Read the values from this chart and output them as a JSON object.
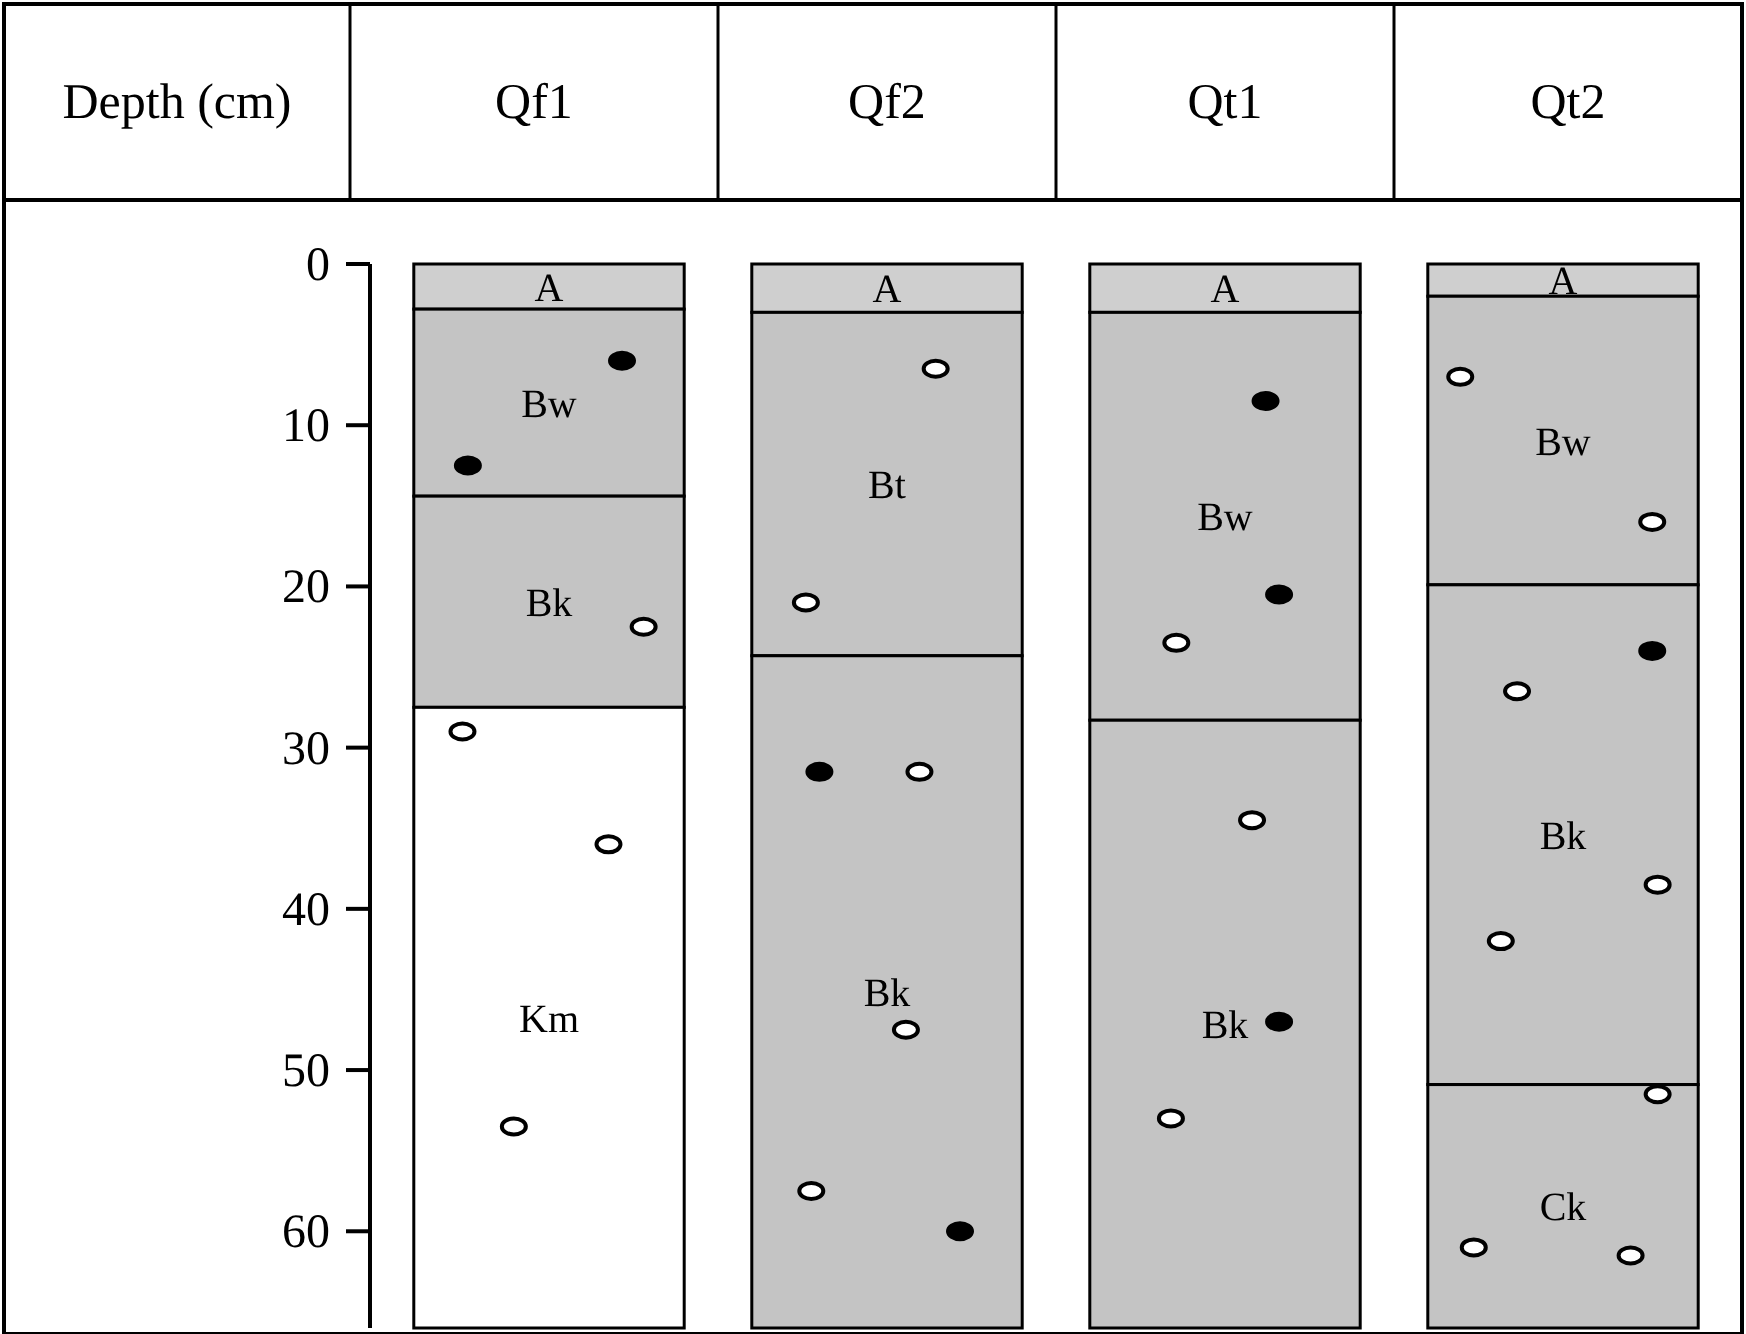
{
  "chart_data": {
    "type": "bar",
    "stacked": true,
    "ylabel": "Depth (cm)",
    "categories": [
      "Qf1",
      "Qf2",
      "Qt1",
      "Qt2"
    ],
    "series": [
      {
        "colors": [
          "#cfcfcf",
          "#cfcfcf",
          "#cfcfcf",
          "#cfcfcf"
        ],
        "values": [
          2.8,
          3,
          3,
          2
        ],
        "value_labels": [
          "A",
          "A",
          "A",
          "A"
        ]
      },
      {
        "colors": [
          "#c4c4c4",
          "#c4c4c4",
          "#c4c4c4",
          "#c4c4c4"
        ],
        "values": [
          11.6,
          21.3,
          25.3,
          17.9
        ],
        "value_labels": [
          "Bw",
          "Bt",
          "Bw",
          "Bw"
        ]
      },
      {
        "colors": [
          "#c4c4c4",
          "#c4c4c4",
          "#c4c4c4",
          "#c4c4c4"
        ],
        "values": [
          13.1,
          41.7,
          37.7,
          31
        ],
        "value_labels": [
          "Bk",
          "Bk",
          "Bk",
          "Bk"
        ]
      },
      {
        "colors": [
          "#ffffff",
          null,
          null,
          "#c4c4c4"
        ],
        "values": [
          38.5,
          null,
          null,
          15.1
        ],
        "value_labels": [
          "Km",
          null,
          null,
          "Ck"
        ]
      }
    ],
    "ylim": [
      66,
      0
    ],
    "yticks": [
      0,
      10,
      20,
      30,
      40,
      50,
      60
    ],
    "grid": false
  }
}
